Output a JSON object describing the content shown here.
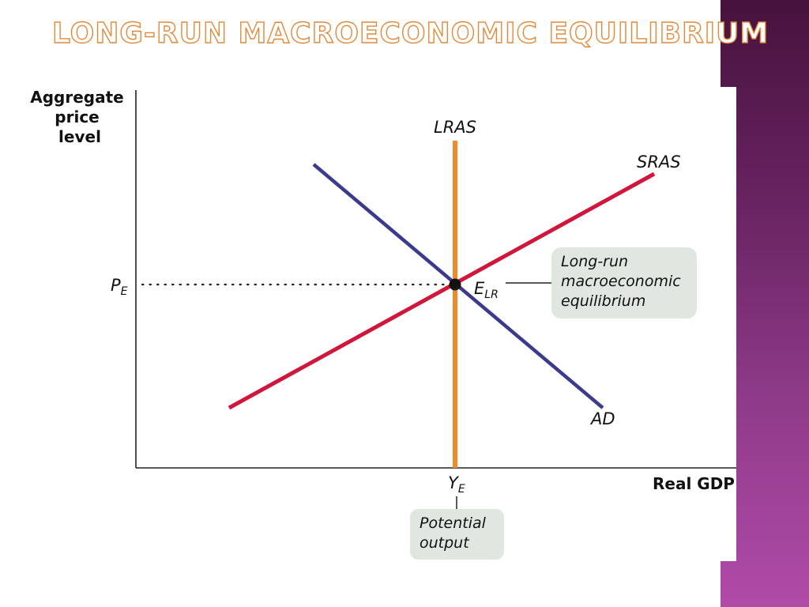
{
  "slide": {
    "title": "Long-Run Macroeconomic Equilibrium"
  },
  "diagram": {
    "y_axis_label": [
      "Aggregate",
      "price",
      "level"
    ],
    "x_axis_label": "Real GDP",
    "curves": {
      "lras": "LRAS",
      "sras": "SRAS",
      "ad": "AD"
    },
    "price_level": {
      "main": "P",
      "sub": "E"
    },
    "output_level": {
      "main": "Y",
      "sub": "E"
    },
    "equilibrium_point": {
      "main": "E",
      "sub": "LR"
    },
    "equilibrium_callout": [
      "Long-run",
      "macroeconomic",
      "equilibrium"
    ],
    "output_callout": [
      "Potential",
      "output"
    ],
    "colors": {
      "lras": "#ee8a2a",
      "sras": "#d0163a",
      "ad": "#3c3a8c",
      "callout_bg": "#dfe7e0",
      "title_outline": "#e28a3c",
      "side_band_top": "#47123d",
      "side_band_bottom": "#b04ba8"
    }
  }
}
